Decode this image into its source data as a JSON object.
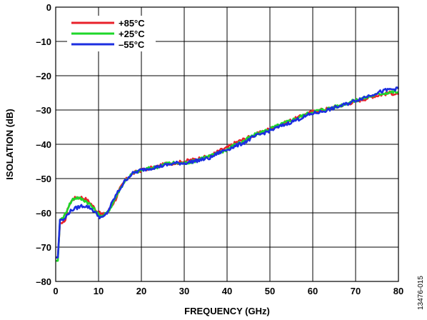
{
  "chart_data": {
    "type": "line",
    "title": "",
    "xlabel": "FREQUENCY (GHz)",
    "ylabel": "ISOLATION (dB)",
    "xlim": [
      0,
      80
    ],
    "ylim": [
      -80,
      0
    ],
    "x_ticks": [
      0,
      10,
      20,
      30,
      40,
      50,
      60,
      70,
      80
    ],
    "y_ticks": [
      0,
      -10,
      -20,
      -30,
      -40,
      -50,
      -60,
      -70,
      -80
    ],
    "x_tick_labels": [
      "0",
      "10",
      "20",
      "30",
      "40",
      "50",
      "60",
      "70",
      "80"
    ],
    "y_tick_labels": [
      "0",
      "–10",
      "–20",
      "–30",
      "–40",
      "–50",
      "–60",
      "–70",
      "–80"
    ],
    "grid": true,
    "legend_position": "top-left",
    "series": [
      {
        "name": "+85°C",
        "color": "#e8202a",
        "x": [
          0,
          0.5,
          1,
          2,
          3,
          4,
          5,
          6,
          7,
          8,
          9,
          10,
          11,
          12,
          13,
          14,
          15,
          16,
          17,
          18,
          20,
          22,
          24,
          26,
          28,
          30,
          32,
          34,
          36,
          38,
          40,
          42,
          44,
          46,
          48,
          50,
          52,
          54,
          56,
          58,
          60,
          62,
          64,
          66,
          68,
          70,
          72,
          74,
          76,
          78,
          80
        ],
        "y": [
          -73,
          -73,
          -63,
          -63,
          -58,
          -56,
          -55.5,
          -55.5,
          -56,
          -57,
          -58.5,
          -60,
          -60.5,
          -60,
          -58,
          -56,
          -53,
          -51,
          -49.5,
          -48.5,
          -47.5,
          -47,
          -46.5,
          -45.5,
          -45.5,
          -45,
          -44.5,
          -44,
          -43.5,
          -42,
          -41,
          -39.5,
          -38.5,
          -37.5,
          -36.5,
          -35.5,
          -34.5,
          -33.5,
          -32.5,
          -31.5,
          -30.5,
          -30,
          -29.5,
          -28.8,
          -28.2,
          -27.5,
          -26.8,
          -26,
          -25.5,
          -25,
          -25.5
        ]
      },
      {
        "name": "+25°C",
        "color": "#1ed72a",
        "x": [
          0,
          0.5,
          1,
          2,
          3,
          4,
          5,
          6,
          7,
          8,
          9,
          10,
          11,
          12,
          13,
          14,
          15,
          16,
          17,
          18,
          20,
          22,
          24,
          26,
          28,
          30,
          32,
          34,
          36,
          38,
          40,
          42,
          44,
          46,
          48,
          50,
          52,
          54,
          56,
          58,
          60,
          62,
          64,
          66,
          68,
          70,
          72,
          74,
          76,
          78,
          80
        ],
        "y": [
          -74,
          -74,
          -62,
          -61,
          -58,
          -56,
          -55.5,
          -56,
          -56.5,
          -57.5,
          -59,
          -60.5,
          -61,
          -60,
          -58,
          -55.5,
          -53,
          -51,
          -49.5,
          -48.5,
          -47.5,
          -47,
          -46.5,
          -45.5,
          -45.5,
          -45.5,
          -45,
          -44,
          -43.5,
          -42.5,
          -41.5,
          -40,
          -39,
          -37.5,
          -36.5,
          -35.5,
          -34.5,
          -33.5,
          -32.5,
          -31.5,
          -30.5,
          -30,
          -29.5,
          -28.8,
          -28,
          -27.2,
          -26.5,
          -25.8,
          -25.2,
          -24.8,
          -24.8
        ]
      },
      {
        "name": "–55°C",
        "color": "#1c2ee0",
        "x": [
          0,
          0.5,
          1,
          2,
          3,
          4,
          5,
          6,
          7,
          8,
          9,
          10,
          11,
          12,
          13,
          14,
          15,
          16,
          17,
          18,
          20,
          22,
          24,
          26,
          28,
          30,
          32,
          34,
          36,
          38,
          40,
          42,
          44,
          46,
          48,
          50,
          52,
          54,
          56,
          58,
          60,
          62,
          64,
          66,
          68,
          70,
          72,
          74,
          76,
          78,
          80
        ],
        "y": [
          -73,
          -73,
          -62,
          -62,
          -60,
          -59,
          -58.5,
          -58,
          -58,
          -58.5,
          -59.5,
          -61,
          -61.5,
          -60,
          -57.5,
          -55,
          -53,
          -51,
          -49.5,
          -48.5,
          -47.5,
          -47,
          -46.5,
          -46,
          -45.5,
          -45.5,
          -45,
          -44.5,
          -44,
          -42.5,
          -41.5,
          -40.5,
          -39.5,
          -38,
          -37,
          -36,
          -35,
          -34,
          -33,
          -32,
          -31,
          -30.5,
          -29.8,
          -29,
          -28.2,
          -27.2,
          -26.3,
          -25.4,
          -24.6,
          -24,
          -23.8
        ]
      }
    ]
  },
  "figure_id": "13476-015"
}
